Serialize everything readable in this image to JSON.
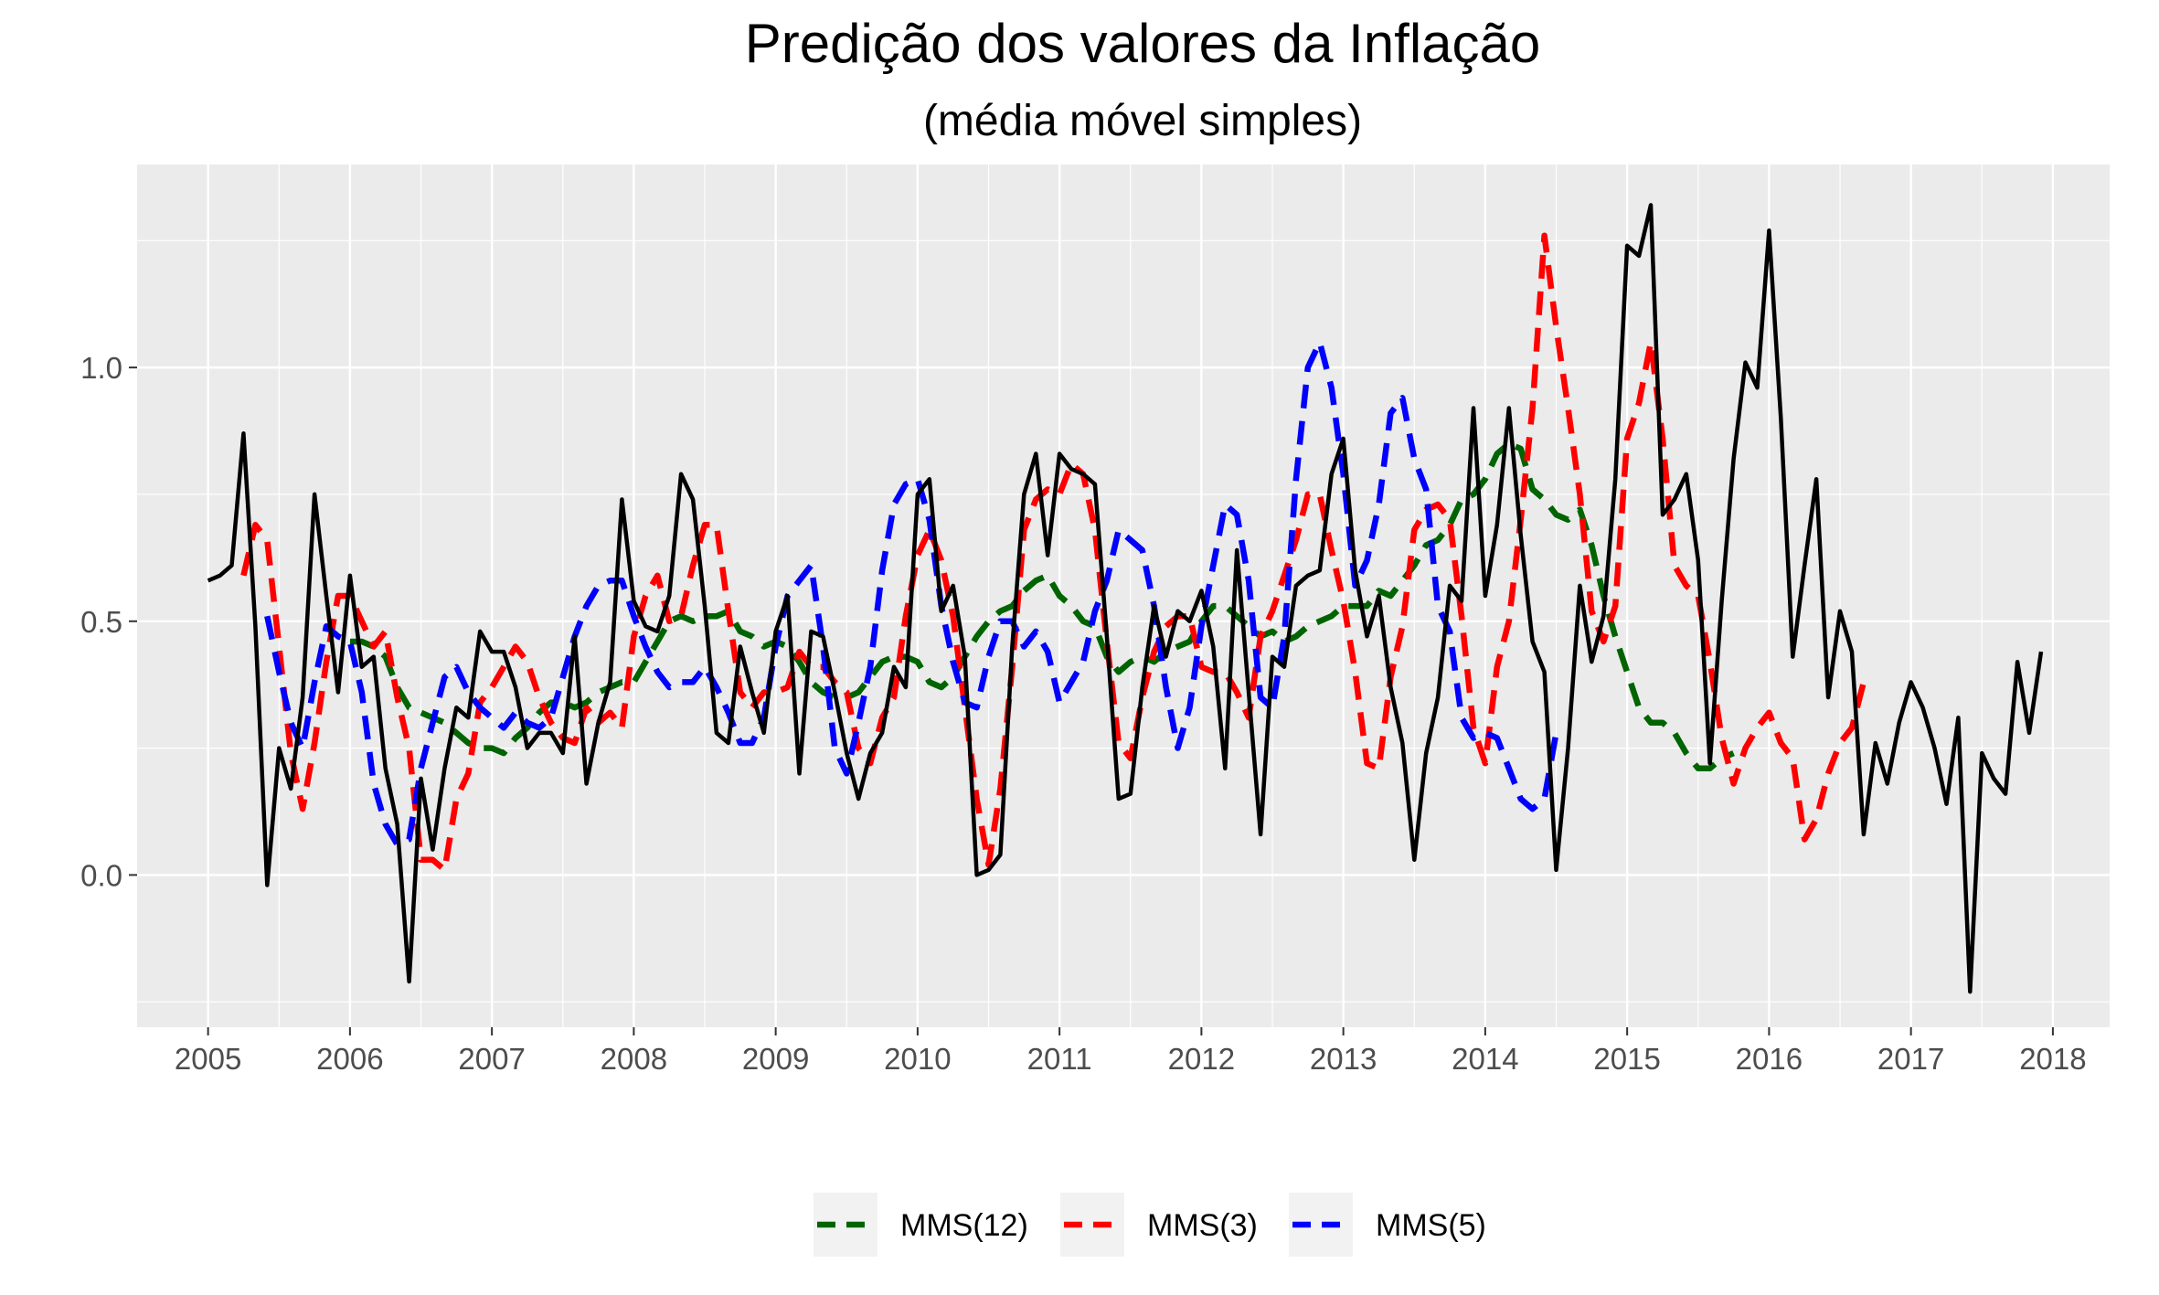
{
  "chart_data": {
    "type": "line",
    "title": "Predição dos valores da Inflação",
    "subtitle": "(média móvel simples)",
    "xlabel": "",
    "ylabel": "",
    "x_start": "2005-01",
    "x_step": "month",
    "xlim": [
      2004.5,
      2018.4
    ],
    "ylim": [
      -0.3,
      1.4
    ],
    "x_ticks": [
      "2005",
      "2006",
      "2007",
      "2008",
      "2009",
      "2010",
      "2011",
      "2012",
      "2013",
      "2014",
      "2015",
      "2016",
      "2017",
      "2018"
    ],
    "y_ticks": [
      "0.0",
      "0.5",
      "1.0"
    ],
    "grid": true,
    "legend_position": "bottom",
    "colors": {
      "panel_bg": "#ebebeb",
      "grid": "#ffffff",
      "observed": "#000000",
      "MMS(12)": "#006400",
      "MMS(3)": "#ff0000",
      "MMS(5)": "#0000ff"
    },
    "observed": [
      0.58,
      0.59,
      0.61,
      0.87,
      0.49,
      -0.02,
      0.25,
      0.17,
      0.35,
      0.75,
      0.55,
      0.36,
      0.59,
      0.41,
      0.43,
      0.21,
      0.1,
      -0.21,
      0.19,
      0.05,
      0.21,
      0.33,
      0.31,
      0.48,
      0.44,
      0.44,
      0.37,
      0.25,
      0.28,
      0.28,
      0.24,
      0.47,
      0.18,
      0.3,
      0.38,
      0.74,
      0.54,
      0.49,
      0.48,
      0.55,
      0.79,
      0.74,
      0.53,
      0.28,
      0.26,
      0.45,
      0.36,
      0.28,
      0.48,
      0.55,
      0.2,
      0.48,
      0.47,
      0.36,
      0.24,
      0.15,
      0.24,
      0.28,
      0.41,
      0.37,
      0.75,
      0.78,
      0.52,
      0.57,
      0.43,
      0.0,
      0.01,
      0.04,
      0.45,
      0.75,
      0.83,
      0.63,
      0.83,
      0.8,
      0.79,
      0.77,
      0.47,
      0.15,
      0.16,
      0.37,
      0.53,
      0.43,
      0.52,
      0.5,
      0.56,
      0.45,
      0.21,
      0.64,
      0.36,
      0.08,
      0.43,
      0.41,
      0.57,
      0.59,
      0.6,
      0.79,
      0.86,
      0.6,
      0.47,
      0.55,
      0.37,
      0.26,
      0.03,
      0.24,
      0.35,
      0.57,
      0.54,
      0.92,
      0.55,
      0.69,
      0.92,
      0.67,
      0.46,
      0.4,
      0.01,
      0.25,
      0.57,
      0.42,
      0.51,
      0.78,
      1.24,
      1.22,
      1.32,
      0.71,
      0.74,
      0.79,
      0.62,
      0.22,
      0.54,
      0.82,
      1.01,
      0.96,
      1.27,
      0.9,
      0.43,
      0.61,
      0.78,
      0.35,
      0.52,
      0.44,
      0.08,
      0.26,
      0.18,
      0.3,
      0.38,
      0.33,
      0.25,
      0.14,
      0.31,
      -0.23,
      0.24,
      0.19,
      0.16,
      0.42,
      0.28,
      0.44
    ],
    "series": [
      {
        "name": "MMS(12)",
        "offset": 12,
        "values": [
          0.46,
          0.46,
          0.45,
          0.43,
          0.37,
          0.33,
          0.32,
          0.31,
          0.3,
          0.28,
          0.26,
          0.25,
          0.25,
          0.24,
          0.27,
          0.29,
          0.32,
          0.34,
          0.34,
          0.33,
          0.34,
          0.36,
          0.37,
          0.38,
          0.38,
          0.42,
          0.46,
          0.5,
          0.51,
          0.5,
          0.51,
          0.51,
          0.52,
          0.48,
          0.47,
          0.45,
          0.46,
          0.45,
          0.42,
          0.38,
          0.36,
          0.35,
          0.35,
          0.36,
          0.39,
          0.42,
          0.43,
          0.43,
          0.42,
          0.38,
          0.37,
          0.39,
          0.43,
          0.47,
          0.5,
          0.52,
          0.53,
          0.56,
          0.58,
          0.59,
          0.55,
          0.53,
          0.5,
          0.49,
          0.43,
          0.4,
          0.42,
          0.43,
          0.42,
          0.44,
          0.45,
          0.46,
          0.5,
          0.53,
          0.53,
          0.51,
          0.49,
          0.47,
          0.48,
          0.46,
          0.47,
          0.49,
          0.5,
          0.51,
          0.53,
          0.53,
          0.53,
          0.56,
          0.55,
          0.58,
          0.61,
          0.65,
          0.66,
          0.69,
          0.74,
          0.75,
          0.78,
          0.83,
          0.85,
          0.84,
          0.76,
          0.74,
          0.71,
          0.7,
          0.72,
          0.65,
          0.55,
          0.47,
          0.4,
          0.33,
          0.3,
          0.3,
          0.28,
          0.24,
          0.21,
          0.21,
          0.23,
          0.24
        ]
      },
      {
        "name": "MMS(3)",
        "offset": 3,
        "values": [
          0.59,
          0.69,
          0.66,
          0.45,
          0.24,
          0.13,
          0.26,
          0.42,
          0.55,
          0.55,
          0.5,
          0.45,
          0.48,
          0.35,
          0.25,
          0.03,
          0.03,
          0.01,
          0.15,
          0.2,
          0.34,
          0.37,
          0.41,
          0.45,
          0.42,
          0.35,
          0.3,
          0.27,
          0.26,
          0.33,
          0.3,
          0.32,
          0.29,
          0.47,
          0.55,
          0.59,
          0.5,
          0.51,
          0.61,
          0.69,
          0.69,
          0.52,
          0.36,
          0.33,
          0.36,
          0.36,
          0.37,
          0.44,
          0.41,
          0.41,
          0.38,
          0.36,
          0.25,
          0.22,
          0.31,
          0.35,
          0.51,
          0.63,
          0.68,
          0.62,
          0.51,
          0.33,
          0.15,
          0.02,
          0.17,
          0.41,
          0.68,
          0.74,
          0.76,
          0.75,
          0.81,
          0.79,
          0.68,
          0.46,
          0.26,
          0.23,
          0.35,
          0.44,
          0.49,
          0.51,
          0.51,
          0.41,
          0.4,
          0.4,
          0.36,
          0.31,
          0.47,
          0.52,
          0.59,
          0.66,
          0.75,
          0.75,
          0.64,
          0.54,
          0.4,
          0.22,
          0.21,
          0.39,
          0.49,
          0.68,
          0.72,
          0.73,
          0.7,
          0.51,
          0.29,
          0.22,
          0.41,
          0.5,
          0.7,
          0.92,
          1.26,
          1.08,
          0.92,
          0.75,
          0.52,
          0.46,
          0.53,
          0.86,
          0.93,
          1.05,
          0.86,
          0.61,
          0.57,
          0.55,
          0.42,
          0.27,
          0.18,
          0.25,
          0.29,
          0.32,
          0.26,
          0.23,
          0.07,
          0.11,
          0.2,
          0.26,
          0.29,
          0.38
        ]
      },
      {
        "name": "MMS(5)",
        "offset": 5,
        "values": [
          0.51,
          0.4,
          0.3,
          0.25,
          0.38,
          0.49,
          0.47,
          0.46,
          0.36,
          0.18,
          0.1,
          0.06,
          0.07,
          0.21,
          0.3,
          0.39,
          0.41,
          0.36,
          0.33,
          0.31,
          0.29,
          0.32,
          0.3,
          0.29,
          0.31,
          0.39,
          0.47,
          0.53,
          0.57,
          0.58,
          0.58,
          0.51,
          0.45,
          0.4,
          0.37,
          0.38,
          0.38,
          0.41,
          0.37,
          0.32,
          0.26,
          0.26,
          0.31,
          0.45,
          0.55,
          0.58,
          0.61,
          0.45,
          0.25,
          0.2,
          0.3,
          0.41,
          0.6,
          0.73,
          0.77,
          0.78,
          0.7,
          0.53,
          0.42,
          0.34,
          0.33,
          0.43,
          0.5,
          0.5,
          0.45,
          0.48,
          0.44,
          0.34,
          0.38,
          0.42,
          0.52,
          0.58,
          0.68,
          0.66,
          0.64,
          0.53,
          0.37,
          0.25,
          0.33,
          0.49,
          0.61,
          0.73,
          0.71,
          0.58,
          0.35,
          0.33,
          0.47,
          0.78,
          1.0,
          1.05,
          0.96,
          0.79,
          0.57,
          0.62,
          0.73,
          0.91,
          0.94,
          0.82,
          0.76,
          0.53,
          0.48,
          0.31,
          0.27,
          0.28,
          0.27,
          0.21,
          0.15,
          0.13,
          0.15,
          0.28
        ]
      }
    ]
  }
}
